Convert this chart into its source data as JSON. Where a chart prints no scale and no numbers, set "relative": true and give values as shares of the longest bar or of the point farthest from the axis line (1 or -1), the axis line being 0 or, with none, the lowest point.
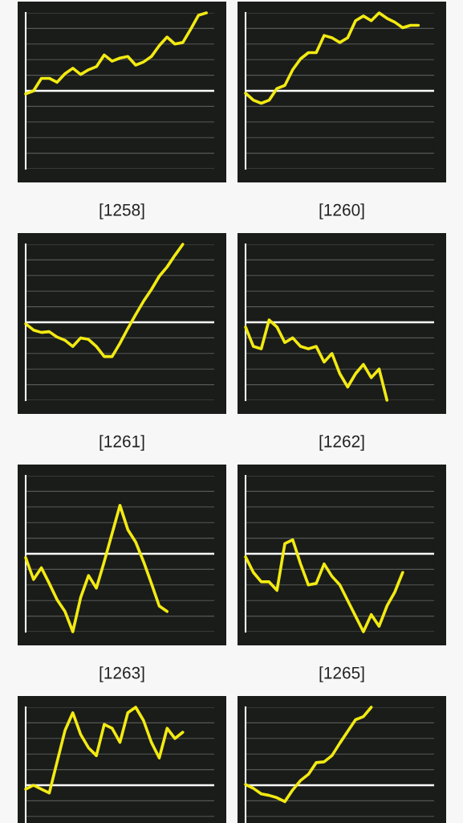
{
  "chart_data": [
    {
      "type": "line",
      "relative": true,
      "xlabel": "[1258]",
      "grid": true,
      "categories": [
        null,
        null,
        null,
        null,
        null,
        null,
        null,
        null,
        null,
        null,
        null,
        null,
        null,
        null,
        null,
        null,
        null,
        null,
        null,
        null,
        null,
        null,
        null,
        null,
        null
      ],
      "series": [
        {
          "color": "#f2ea12",
          "values": [
            -0.04,
            0,
            0.16,
            0.16,
            0.11,
            0.22,
            0.29,
            0.21,
            0.27,
            0.31,
            0.46,
            0.38,
            0.42,
            0.44,
            0.33,
            0.37,
            0.44,
            0.58,
            0.69,
            0.6,
            0.62,
            0.79,
            0.97,
            1,
            null
          ]
        }
      ]
    },
    {
      "type": "line",
      "relative": true,
      "xlabel": "[1260]",
      "grid": true,
      "categories": [
        null,
        null,
        null,
        null,
        null,
        null,
        null,
        null,
        null,
        null,
        null,
        null,
        null,
        null,
        null,
        null,
        null,
        null,
        null,
        null,
        null,
        null,
        null,
        null,
        null
      ],
      "series": [
        {
          "color": "#f2ea12",
          "values": [
            -0.03,
            -0.12,
            -0.16,
            -0.12,
            0.03,
            0.07,
            0.27,
            0.41,
            0.49,
            0.49,
            0.71,
            0.68,
            0.62,
            0.68,
            0.9,
            0.96,
            0.9,
            1,
            0.93,
            0.88,
            0.81,
            0.84,
            0.84,
            null,
            null
          ]
        }
      ]
    },
    {
      "type": "line",
      "relative": true,
      "xlabel": "[1261]",
      "grid": true,
      "categories": [
        null,
        null,
        null,
        null,
        null,
        null,
        null,
        null,
        null,
        null,
        null,
        null,
        null,
        null,
        null,
        null,
        null,
        null,
        null,
        null,
        null,
        null,
        null,
        null,
        null
      ],
      "series": [
        {
          "color": "#f2ea12",
          "values": [
            -0.02,
            -0.1,
            -0.13,
            -0.12,
            -0.19,
            -0.23,
            -0.31,
            -0.2,
            -0.22,
            -0.31,
            -0.44,
            -0.44,
            -0.27,
            -0.08,
            0.1,
            0.27,
            0.42,
            0.59,
            0.71,
            0.86,
            1,
            null,
            null,
            null,
            null
          ]
        }
      ]
    },
    {
      "type": "line",
      "relative": true,
      "xlabel": "[1262]",
      "grid": true,
      "categories": [
        null,
        null,
        null,
        null,
        null,
        null,
        null,
        null,
        null,
        null,
        null,
        null,
        null,
        null,
        null,
        null,
        null,
        null,
        null,
        null,
        null,
        null,
        null,
        null,
        null
      ],
      "series": [
        {
          "color": "#f2ea12",
          "values": [
            -0.06,
            -0.31,
            -0.34,
            0.03,
            -0.06,
            -0.26,
            -0.2,
            -0.31,
            -0.34,
            -0.31,
            -0.51,
            -0.4,
            -0.66,
            -0.83,
            -0.66,
            -0.54,
            -0.71,
            -0.6,
            -1,
            null,
            null,
            null,
            null,
            null,
            null
          ]
        }
      ]
    },
    {
      "type": "line",
      "relative": true,
      "xlabel": "[1263]",
      "grid": true,
      "categories": [
        null,
        null,
        null,
        null,
        null,
        null,
        null,
        null,
        null,
        null,
        null,
        null,
        null,
        null,
        null,
        null,
        null,
        null,
        null,
        null,
        null,
        null,
        null,
        null,
        null
      ],
      "series": [
        {
          "color": "#f2ea12",
          "values": [
            -0.05,
            -0.33,
            -0.18,
            -0.38,
            -0.59,
            -0.74,
            -1,
            -0.56,
            -0.28,
            -0.44,
            -0.1,
            0.26,
            0.62,
            0.31,
            0.15,
            -0.1,
            -0.38,
            -0.67,
            -0.74,
            null,
            null,
            null,
            null,
            null,
            null
          ]
        }
      ]
    },
    {
      "type": "line",
      "relative": true,
      "xlabel": "[1265]",
      "grid": true,
      "categories": [
        null,
        null,
        null,
        null,
        null,
        null,
        null,
        null,
        null,
        null,
        null,
        null,
        null,
        null,
        null,
        null,
        null,
        null,
        null,
        null,
        null,
        null,
        null,
        null,
        null
      ],
      "series": [
        {
          "color": "#f2ea12",
          "values": [
            -0.04,
            -0.24,
            -0.36,
            -0.36,
            -0.47,
            0.13,
            0.18,
            -0.13,
            -0.4,
            -0.38,
            -0.13,
            -0.29,
            -0.4,
            -0.6,
            -0.8,
            -1,
            -0.78,
            -0.93,
            -0.67,
            -0.49,
            -0.24,
            null,
            null,
            null,
            null
          ]
        }
      ]
    },
    {
      "type": "line",
      "relative": true,
      "grid": true,
      "categories": [
        null,
        null,
        null,
        null,
        null,
        null,
        null,
        null,
        null,
        null,
        null,
        null,
        null,
        null,
        null,
        null,
        null,
        null,
        null,
        null,
        null,
        null,
        null,
        null,
        null
      ],
      "series": [
        {
          "color": "#f2ea12",
          "values": [
            -0.05,
            0,
            -0.05,
            -0.1,
            0.3,
            0.7,
            0.93,
            0.65,
            0.48,
            0.38,
            0.78,
            0.73,
            0.55,
            0.93,
            1,
            0.83,
            0.55,
            0.35,
            0.73,
            0.6,
            0.68,
            null,
            null,
            null,
            null
          ]
        }
      ]
    },
    {
      "type": "line",
      "relative": true,
      "grid": true,
      "categories": [
        null,
        null,
        null,
        null,
        null,
        null,
        null,
        null,
        null,
        null,
        null,
        null,
        null,
        null,
        null,
        null,
        null,
        null,
        null,
        null,
        null,
        null,
        null,
        null,
        null
      ],
      "series": [
        {
          "color": "#f2ea12",
          "values": [
            0.01,
            -0.04,
            -0.11,
            -0.13,
            -0.16,
            -0.21,
            -0.06,
            0.06,
            0.14,
            0.29,
            0.3,
            0.38,
            0.54,
            0.69,
            0.84,
            0.88,
            1,
            null,
            null,
            null,
            null,
            null,
            null,
            null,
            null
          ]
        }
      ]
    }
  ]
}
